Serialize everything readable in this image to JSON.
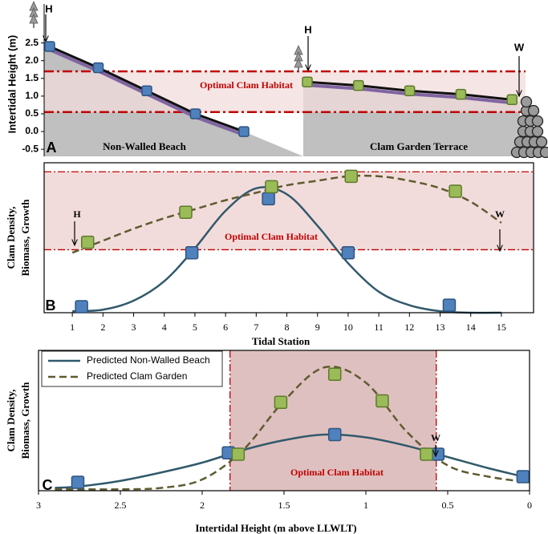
{
  "chart_data": [
    {
      "type": "profile",
      "panel_label": "A",
      "y_label": "Intertidal Height (m)",
      "ylim": [
        -0.7,
        3.6
      ],
      "yticks": [
        -0.5,
        {
          "value": 0,
          "label": "0.0"
        },
        0.5,
        {
          "value": 1,
          "label": "1.0"
        },
        1.5,
        {
          "value": 2,
          "label": "2.0"
        },
        2.5
      ],
      "habitat": [
        0.55,
        1.7
      ],
      "habitat_label": "Optimal Clam Habitat",
      "habitat_color": "#f2dcdb",
      "annotations": [
        "H",
        "H",
        "W"
      ],
      "legend": false,
      "series": [
        {
          "name": "Non-Walled Beach",
          "color": "#4f81bd",
          "values": [
            2.4,
            1.8,
            1.15,
            0.5,
            0
          ]
        },
        {
          "name": "Clam Garden Terrace",
          "color": "#9bbb59",
          "values": [
            1.4,
            1.3,
            1.15,
            1.05,
            0.9
          ]
        }
      ]
    },
    {
      "type": "line",
      "panel_label": "B",
      "x_label": "Tidal Station",
      "y_label": [
        "Clam Density,",
        "Biomass, Growth"
      ],
      "xlim": [
        0.08,
        16.05
      ],
      "xticks": [
        1,
        2,
        3,
        4,
        5,
        6,
        7,
        8,
        9,
        10,
        11,
        12,
        13,
        14,
        15
      ],
      "ylim": [
        0,
        1
      ],
      "habitat": [
        0.42,
        0.94
      ],
      "habitat_axis": "y",
      "habitat_label": "Optimal Clam Habitat",
      "habitat_color": "#f2dcdb",
      "annotations": [
        "H",
        "W"
      ],
      "legend": false,
      "series": [
        {
          "style": "line",
          "color": "#31596b",
          "x": [
            1,
            2,
            3,
            4,
            5,
            6,
            7,
            8,
            9,
            10,
            11,
            12,
            13,
            14,
            15
          ],
          "values": [
            0.01,
            0.02,
            0.08,
            0.21,
            0.43,
            0.68,
            0.83,
            0.79,
            0.58,
            0.33,
            0.14,
            0.05,
            0.01,
            0,
            0
          ]
        },
        {
          "style": "dashed",
          "color": "#5f5b31",
          "x": [
            1,
            2,
            3,
            4,
            5,
            6,
            7,
            8,
            9,
            10,
            11,
            12,
            13,
            14,
            15
          ],
          "values": [
            0.4,
            0.48,
            0.56,
            0.63,
            0.69,
            0.75,
            0.8,
            0.85,
            0.88,
            0.91,
            0.91,
            0.88,
            0.83,
            0.74,
            0.6
          ]
        },
        {
          "style": "markers",
          "color": "#4f81bd",
          "x": [
            1.3,
            4.9,
            7.4,
            10,
            13.3
          ],
          "values": [
            0.04,
            0.4,
            0.76,
            0.4,
            0.05
          ]
        },
        {
          "style": "markers",
          "color": "#9bbb59",
          "x": [
            1.5,
            4.7,
            7.5,
            10.1,
            13.5
          ],
          "values": [
            0.47,
            0.67,
            0.84,
            0.91,
            0.81
          ]
        }
      ]
    },
    {
      "type": "line",
      "panel_label": "C",
      "x_label": "Intertidal Height (m above LLWLT)",
      "y_label": [
        "Clam Density,",
        "Biomass, Growth"
      ],
      "xlim": [
        3,
        0
      ],
      "xticks": [
        3,
        2.5,
        2,
        1.5,
        1,
        0.5,
        0
      ],
      "ylim": [
        0,
        1
      ],
      "habitat": [
        1.83,
        0.57
      ],
      "habitat_axis": "x",
      "habitat_label": "Optimal Clam Habitat",
      "habitat_color": "#dfc0c0",
      "annotations": [
        "W"
      ],
      "legend": "upper left",
      "series": [
        {
          "name": "Predicted Non-Walled Beach",
          "style": "line",
          "color": "#31596b",
          "x": [
            2.9,
            2.75,
            2.5,
            2.25,
            2,
            1.75,
            1.5,
            1.25,
            1,
            0.75,
            0.5,
            0.25,
            0
          ],
          "values": [
            0.02,
            0.03,
            0.07,
            0.13,
            0.2,
            0.29,
            0.36,
            0.4,
            0.38,
            0.32,
            0.24,
            0.16,
            0.09
          ]
        },
        {
          "name": "Predicted Clam Garden",
          "style": "dashed",
          "color": "#5f5b31",
          "x": [
            2.9,
            2.75,
            2.5,
            2.25,
            2,
            1.75,
            1.5,
            1.25,
            1,
            0.75,
            0.5,
            0.25,
            0
          ],
          "values": [
            0.01,
            0.01,
            0.01,
            0.02,
            0.08,
            0.29,
            0.64,
            0.88,
            0.77,
            0.42,
            0.18,
            0.1,
            0.06
          ]
        },
        {
          "style": "markers",
          "color": "#4f81bd",
          "x": [
            2.76,
            1.84,
            1.19,
            0.56,
            0.04
          ],
          "values": [
            0.06,
            0.27,
            0.4,
            0.26,
            0.1
          ]
        },
        {
          "style": "markers",
          "color": "#9bbb59",
          "x": [
            1.78,
            1.52,
            1.19,
            0.9,
            0.63
          ],
          "values": [
            0.26,
            0.63,
            0.83,
            0.64,
            0.26
          ]
        }
      ]
    }
  ]
}
